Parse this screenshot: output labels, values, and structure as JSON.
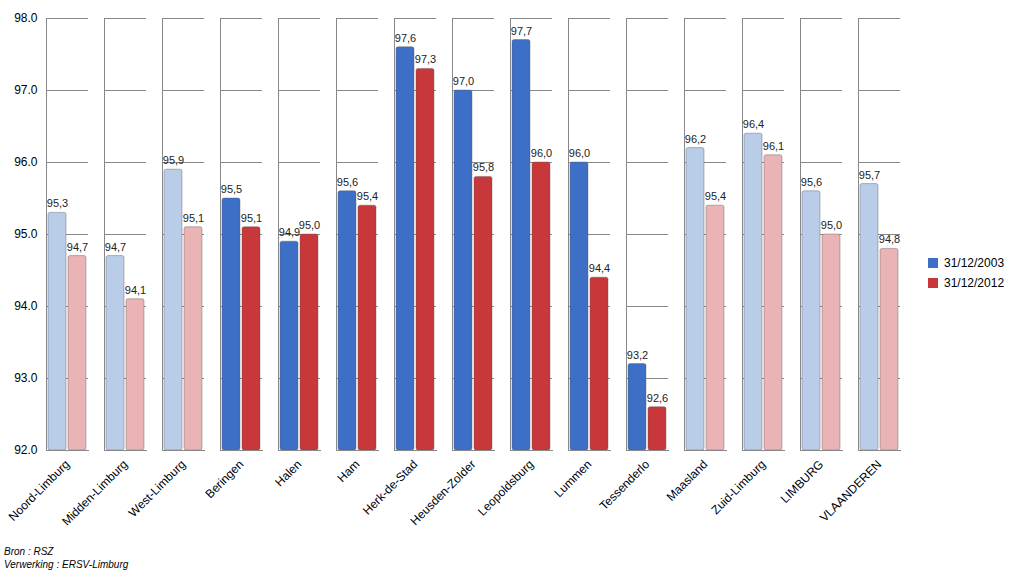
{
  "chart_data": {
    "type": "bar",
    "categories": [
      "Noord-Limburg",
      "Midden-Limburg",
      "West-Limburg",
      "Beringen",
      "Halen",
      "Ham",
      "Herk-de-Stad",
      "Heusden-Zolder",
      "Leopoldsburg",
      "Lummen",
      "Tessenderlo",
      "Maasland",
      "Zuid-Limburg",
      "LIMBURG",
      "VLAANDEREN"
    ],
    "series": [
      {
        "name": "31/12/2003",
        "color": "#3d6fc7",
        "colors": [
          "#b9cde8",
          "#b9cde8",
          "#b9cde8",
          "#3d6fc7",
          "#3d6fc7",
          "#3d6fc7",
          "#3d6fc7",
          "#3d6fc7",
          "#3d6fc7",
          "#3d6fc7",
          "#3d6fc7",
          "#b9cde8",
          "#b9cde8",
          "#b9cde8",
          "#b9cde8"
        ],
        "values": [
          95.3,
          94.7,
          95.9,
          95.5,
          94.9,
          95.6,
          97.6,
          97.0,
          97.7,
          96.0,
          93.2,
          96.2,
          96.4,
          95.6,
          95.7
        ],
        "value_labels": [
          "95,3",
          "94,7",
          "95,9",
          "95,5",
          "94,9",
          "95,6",
          "97,6",
          "97,0",
          "97,7",
          "96,0",
          "93,2",
          "96,2",
          "96,4",
          "95,6",
          "95,7"
        ]
      },
      {
        "name": "31/12/2012",
        "color": "#c8373a",
        "colors": [
          "#eab3b5",
          "#eab3b5",
          "#eab3b5",
          "#c8373a",
          "#c8373a",
          "#c8373a",
          "#c8373a",
          "#c8373a",
          "#c8373a",
          "#c8373a",
          "#c8373a",
          "#eab3b5",
          "#eab3b5",
          "#eab3b5",
          "#eab3b5"
        ],
        "values": [
          94.7,
          94.1,
          95.1,
          95.1,
          95.0,
          95.4,
          97.3,
          95.8,
          96.0,
          94.4,
          92.6,
          95.4,
          96.1,
          95.0,
          94.8
        ],
        "value_labels": [
          "94,7",
          "94,1",
          "95,1",
          "95,1",
          "95,0",
          "95,4",
          "97,3",
          "95,8",
          "96,0",
          "94,4",
          "92,6",
          "95,4",
          "96,1",
          "95,0",
          "94,8"
        ]
      }
    ],
    "ylim": [
      92,
      98
    ],
    "yticks": [
      92,
      93,
      94,
      95,
      96,
      97,
      98
    ],
    "grid": true,
    "data_labels": true,
    "legend": "right",
    "annotations": [
      "Bron : RSZ",
      "Verwerking : ERSV-Limburg"
    ]
  }
}
